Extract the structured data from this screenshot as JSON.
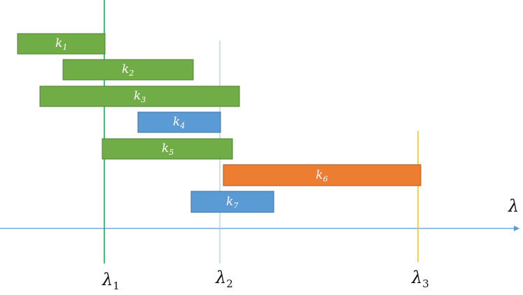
{
  "axis": {
    "label": "λ",
    "color": "#5b9bd5"
  },
  "markers": [
    {
      "id": "lambda-1",
      "symbol": "λ",
      "sub": "1",
      "color": "#00b050"
    },
    {
      "id": "lambda-2",
      "symbol": "λ",
      "sub": "2",
      "color": "#9dc3e6"
    },
    {
      "id": "lambda-3",
      "symbol": "λ",
      "sub": "3",
      "color": "#ffc000"
    }
  ],
  "bars": [
    {
      "id": "k1",
      "symbol": "k",
      "sub": "1",
      "color": "#70ad47",
      "border": "#507e32"
    },
    {
      "id": "k2",
      "symbol": "k",
      "sub": "2",
      "color": "#70ad47",
      "border": "#507e32"
    },
    {
      "id": "k3",
      "symbol": "k",
      "sub": "3",
      "color": "#70ad47",
      "border": "#507e32"
    },
    {
      "id": "k4",
      "symbol": "k",
      "sub": "4",
      "color": "#5b9bd5",
      "border": "#41719c"
    },
    {
      "id": "k5",
      "symbol": "k",
      "sub": "5",
      "color": "#70ad47",
      "border": "#507e32"
    },
    {
      "id": "k6",
      "symbol": "k",
      "sub": "6",
      "color": "#ed7d31",
      "border": "#ae5a21"
    },
    {
      "id": "k7",
      "symbol": "k",
      "sub": "7",
      "color": "#5b9bd5",
      "border": "#41719c"
    }
  ]
}
